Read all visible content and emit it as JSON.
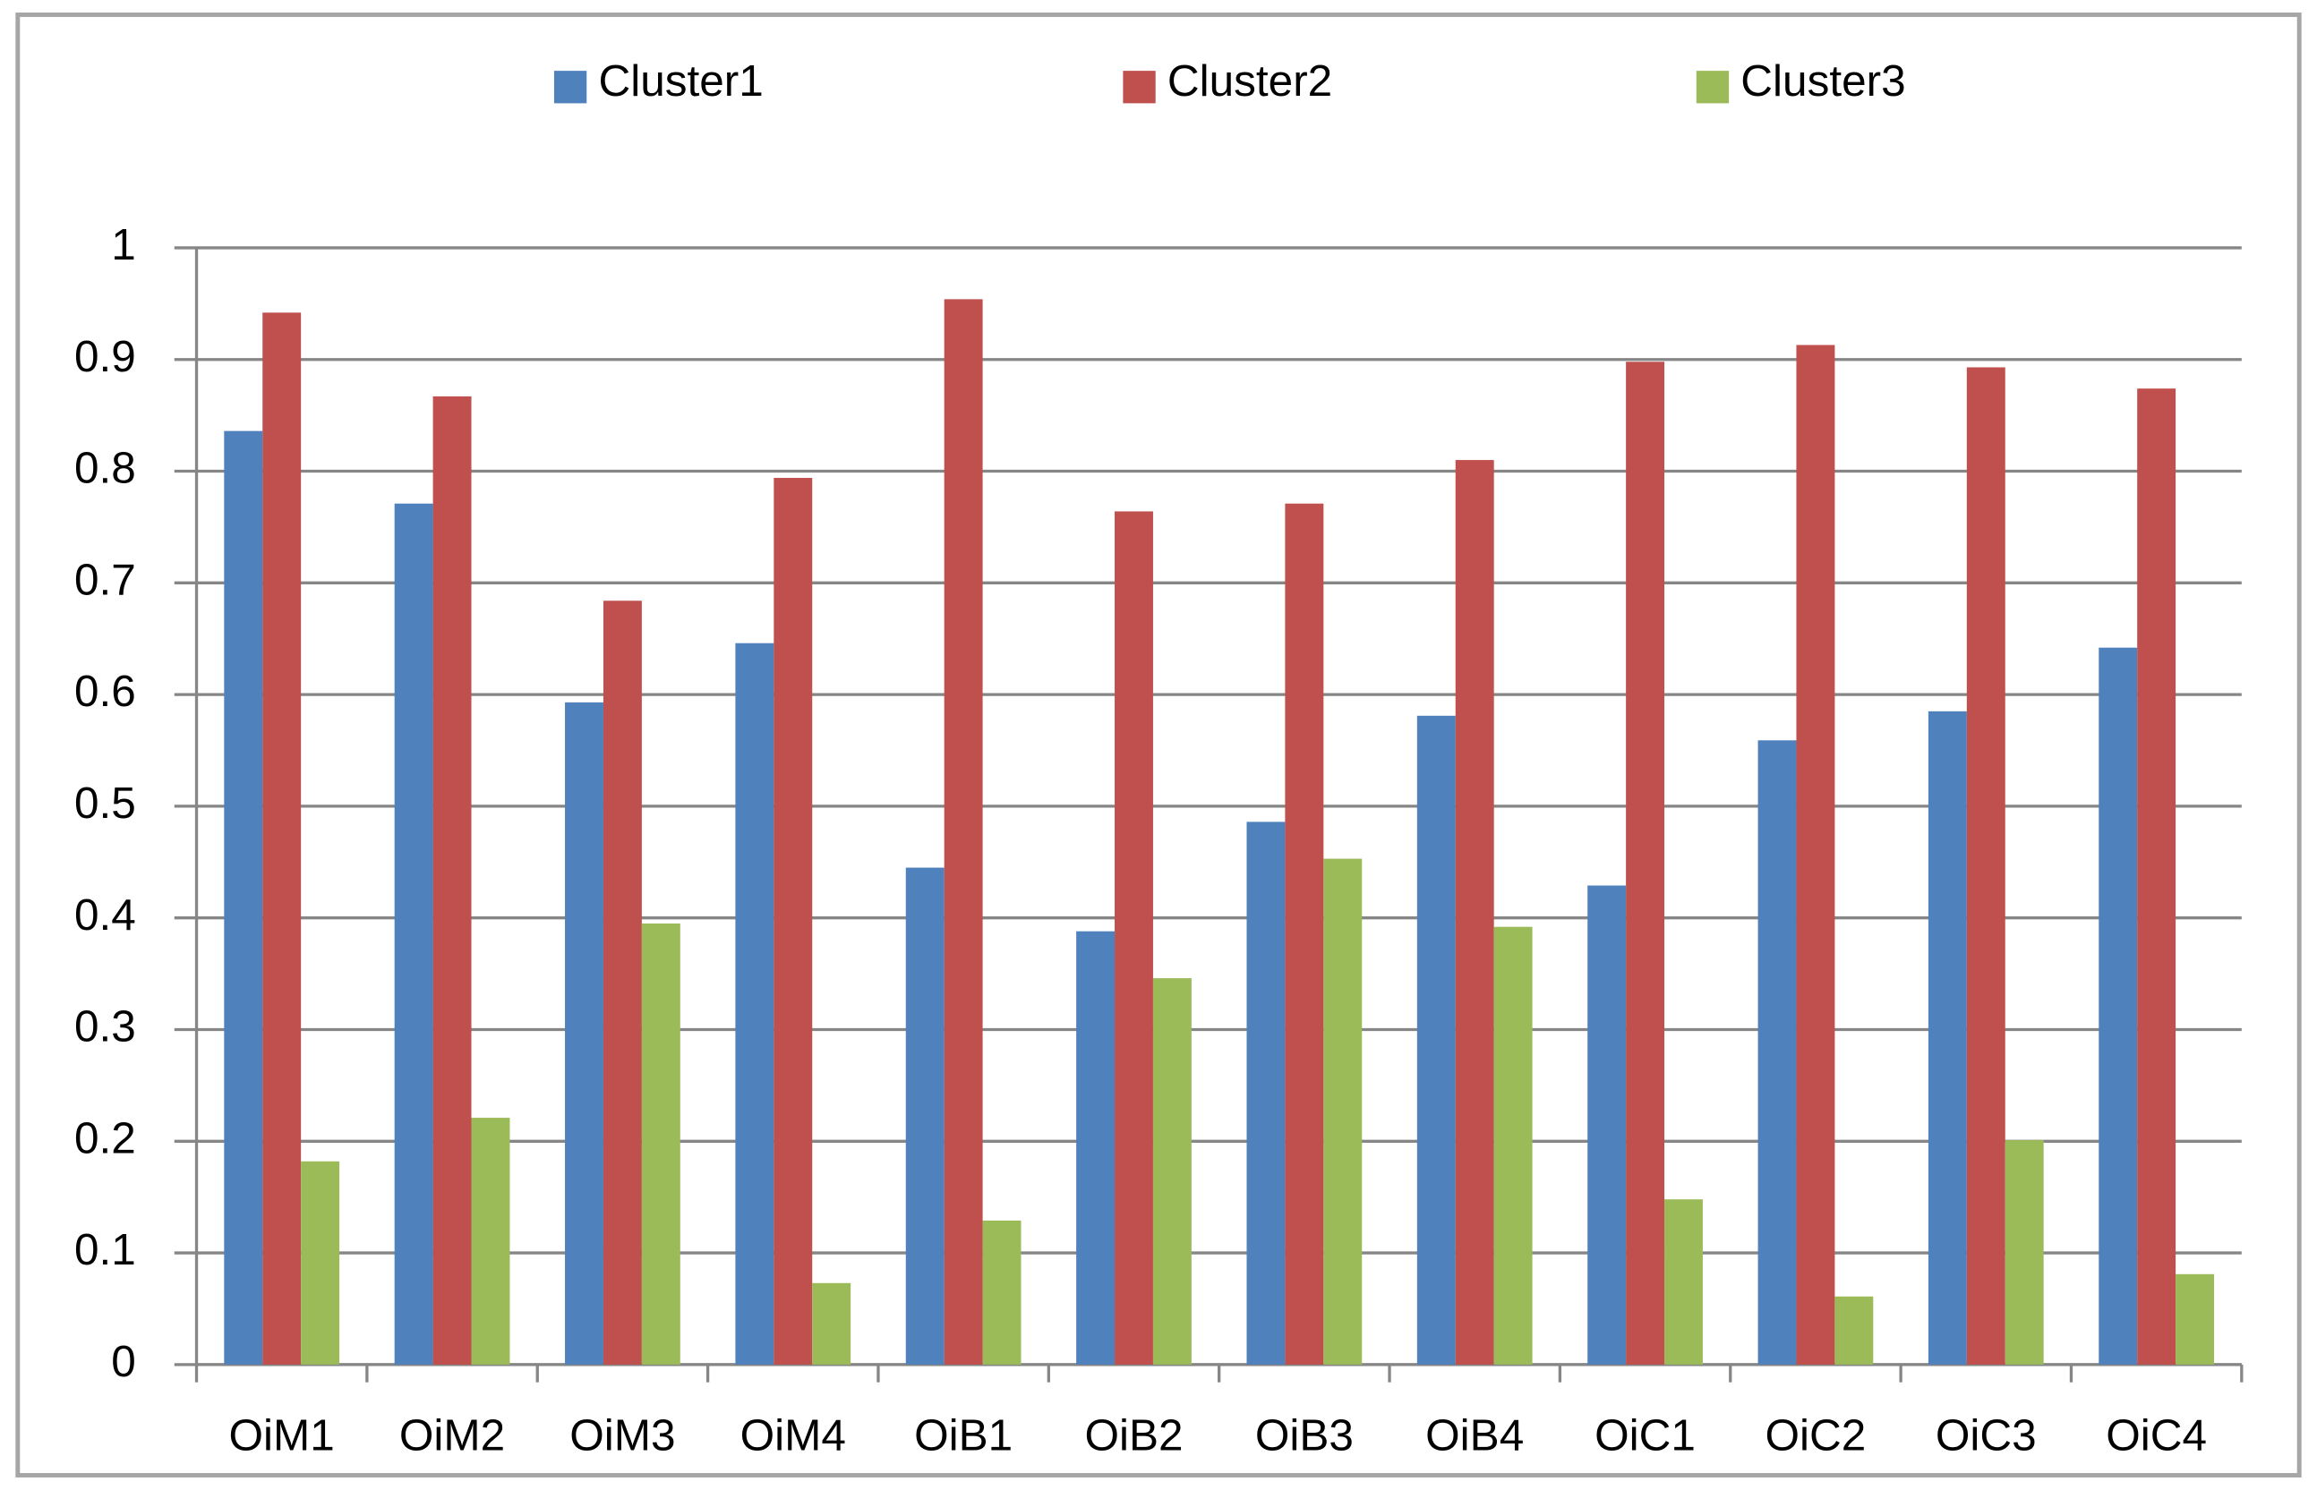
{
  "chart_data": {
    "type": "bar",
    "categories": [
      "OiM1",
      "OiM2",
      "OiM3",
      "OiM4",
      "OiB1",
      "OiB2",
      "OiB3",
      "OiB4",
      "OiC1",
      "OiC2",
      "OiC3",
      "OiC4"
    ],
    "series": [
      {
        "name": "Cluster1",
        "color": "#4f81bd",
        "values": [
          0.836,
          0.771,
          0.593,
          0.646,
          0.445,
          0.388,
          0.486,
          0.581,
          0.429,
          0.559,
          0.585,
          0.642
        ]
      },
      {
        "name": "Cluster2",
        "color": "#c0504d",
        "values": [
          0.942,
          0.867,
          0.684,
          0.794,
          0.954,
          0.764,
          0.771,
          0.81,
          0.898,
          0.913,
          0.893,
          0.874
        ]
      },
      {
        "name": "Cluster3",
        "color": "#9bbb59",
        "values": [
          0.182,
          0.221,
          0.395,
          0.073,
          0.129,
          0.346,
          0.453,
          0.392,
          0.148,
          0.061,
          0.201,
          0.081
        ]
      }
    ],
    "ylim": [
      0,
      1
    ],
    "yticks": [
      0,
      0.1,
      0.2,
      0.3,
      0.4,
      0.5,
      0.6,
      0.7,
      0.8,
      0.9,
      1
    ],
    "grid": true,
    "legend": "top"
  }
}
